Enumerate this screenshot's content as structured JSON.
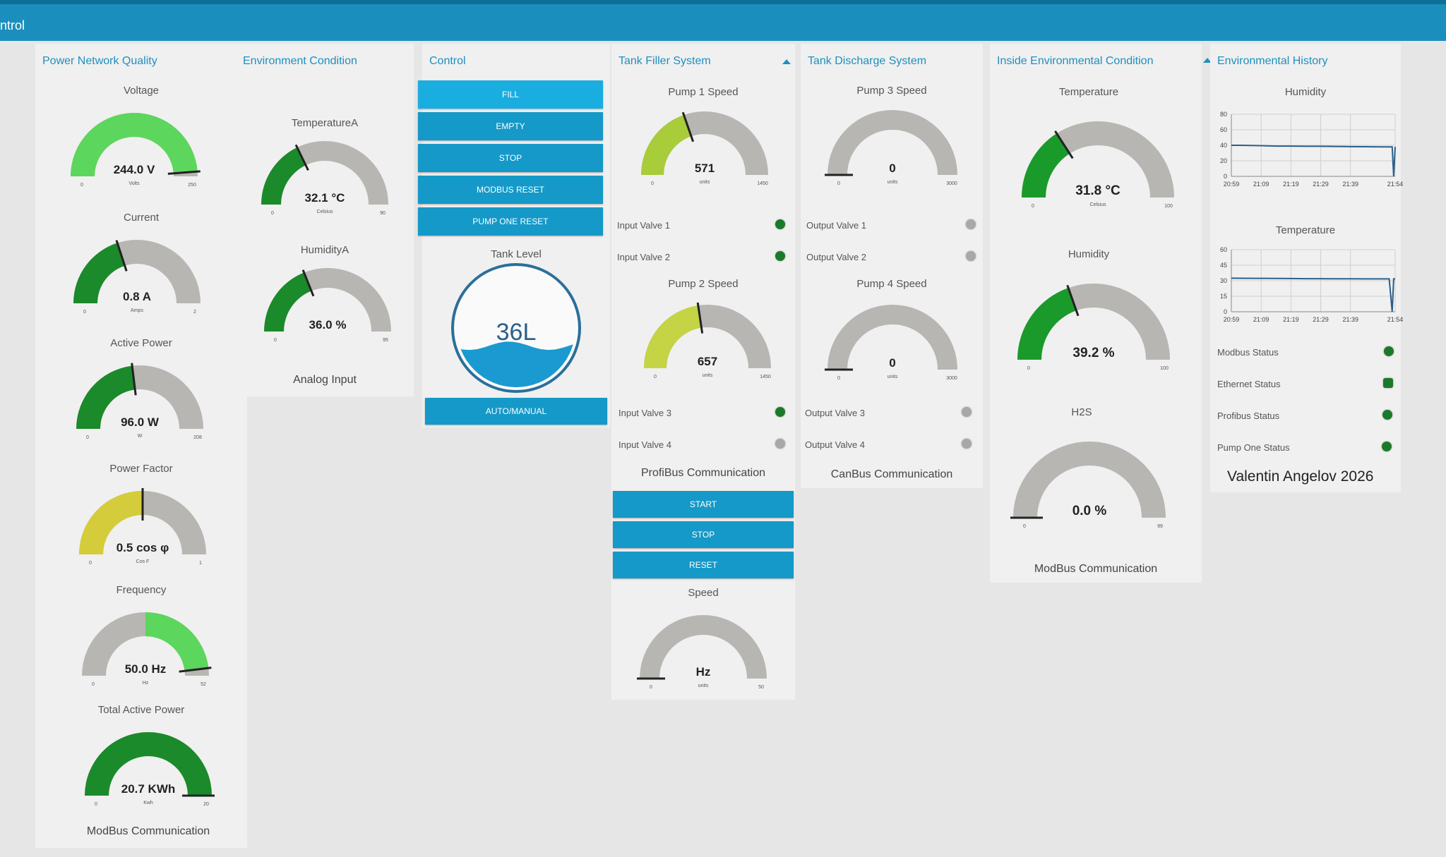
{
  "header": {
    "title": "ntrol",
    "color": "#1a8fbd"
  },
  "panels": {
    "power": {
      "title": "Power Network Quality",
      "footer": "ModBus Communication",
      "gauges": [
        {
          "label": "Voltage",
          "value_text": "244.0 V",
          "unit": "Volts",
          "min": "0",
          "max": "250",
          "value": 244,
          "range": [
            0,
            250
          ],
          "color": "#5cd65c"
        },
        {
          "label": "Current",
          "value_text": "0.8 A",
          "unit": "Amps",
          "min": "0",
          "max": "2",
          "value": 0.8,
          "range": [
            0,
            2
          ],
          "color": "#1a8a2a"
        },
        {
          "label": "Active Power",
          "value_text": "96.0 W",
          "unit": "W",
          "min": "0",
          "max": "208",
          "value": 96,
          "range": [
            0,
            208
          ],
          "color": "#1a8a2a"
        },
        {
          "label": "Power Factor",
          "value_text": "0.5 cos φ",
          "unit": "Cos F",
          "min": "0",
          "max": "1",
          "value": 0.5,
          "range": [
            0,
            1
          ],
          "color": "#d4cc3a"
        },
        {
          "label": "Frequency",
          "value_text": "50.0 Hz",
          "unit": "Hz",
          "min": "0",
          "max": "52",
          "value": 50,
          "range": [
            0,
            52
          ],
          "color": "#5cd65c",
          "fill_mode": "upper"
        },
        {
          "label": "Total Active Power",
          "value_text": "20.7 KWh",
          "unit": "Kwh",
          "min": "0",
          "max": "20",
          "value": 20.7,
          "range": [
            0,
            20
          ],
          "color": "#1a8a2a"
        }
      ]
    },
    "env": {
      "title": "Environment Condition",
      "footer": "Analog Input",
      "gauges": [
        {
          "label": "TemperatureA",
          "value_text": "32.1 °C",
          "unit": "Celsius",
          "min": "0",
          "max": "90",
          "value": 32.1,
          "range": [
            0,
            90
          ],
          "color": "#1a8a2a"
        },
        {
          "label": "HumidityA",
          "value_text": "36.0 %",
          "unit": "",
          "min": "0",
          "max": "95",
          "value": 36,
          "range": [
            0,
            95
          ],
          "color": "#1a8a2a"
        }
      ]
    },
    "control": {
      "title": "Control",
      "buttons": [
        "FILL",
        "EMPTY",
        "STOP",
        "MODBUS RESET",
        "PUMP ONE RESET"
      ],
      "tank_label": "Tank Level",
      "tank_value": "36L",
      "tank_level": 0.36,
      "mode_button": "AUTO/MANUAL"
    },
    "filler": {
      "title": "Tank Filler System",
      "pump1": {
        "label": "Pump 1 Speed",
        "value_text": "571",
        "unit": "units",
        "min": "0",
        "max": "1450",
        "value": 571,
        "range": [
          0,
          1450
        ],
        "color": "#a8cc3a"
      },
      "valves_a": [
        {
          "label": "Input Valve 1",
          "on": true
        },
        {
          "label": "Input Valve 2",
          "on": true
        }
      ],
      "pump2": {
        "label": "Pump 2 Speed",
        "value_text": "657",
        "unit": "units",
        "min": "0",
        "max": "1450",
        "value": 657,
        "range": [
          0,
          1450
        ],
        "color": "#c4d444"
      },
      "valves_b": [
        {
          "label": "Input Valve 3",
          "on": true
        },
        {
          "label": "Input Valve 4",
          "on": false
        }
      ],
      "comm_label": "ProfiBus Communication",
      "buttons": [
        "START",
        "STOP",
        "RESET"
      ],
      "speed": {
        "label": "Speed",
        "value_text": "Hz",
        "unit": "units",
        "min": "0",
        "max": "50",
        "value": 0,
        "range": [
          0,
          50
        ],
        "color": "#1a8a2a"
      }
    },
    "discharge": {
      "title": "Tank Discharge System",
      "pump3": {
        "label": "Pump 3 Speed",
        "value_text": "0",
        "unit": "units",
        "min": "0",
        "max": "3000",
        "value": 0,
        "range": [
          0,
          3000
        ],
        "color": "#1a8a2a"
      },
      "valves_a": [
        {
          "label": "Output Valve 1",
          "on": false
        },
        {
          "label": "Output Valve 2",
          "on": false
        }
      ],
      "pump4": {
        "label": "Pump 4 Speed",
        "value_text": "0",
        "unit": "units",
        "min": "0",
        "max": "3000",
        "value": 0,
        "range": [
          0,
          3000
        ],
        "color": "#1a8a2a"
      },
      "valves_b": [
        {
          "label": "Output Valve 3",
          "on": false
        },
        {
          "label": "Output Valve 4",
          "on": false
        }
      ],
      "comm_label": "CanBus Communication"
    },
    "inside": {
      "title": "Inside Environmental Condition",
      "footer": "ModBus Communication",
      "gauges": [
        {
          "label": "Temperature",
          "value_text": "31.8 °C",
          "unit": "Celsius",
          "min": "0",
          "max": "100",
          "value": 31.8,
          "range": [
            0,
            100
          ],
          "color": "#1a9a2a"
        },
        {
          "label": "Humidity",
          "value_text": "39.2 %",
          "unit": "",
          "min": "0",
          "max": "100",
          "value": 39.2,
          "range": [
            0,
            100
          ],
          "color": "#1a9a2a"
        },
        {
          "label": "H2S",
          "value_text": "0.0 %",
          "unit": "",
          "min": "0",
          "max": "99",
          "value": 0,
          "range": [
            0,
            99
          ],
          "color": "#1a9a2a"
        }
      ]
    },
    "history": {
      "title": "Environmental History",
      "status": [
        {
          "label": "Modbus Status",
          "on": true,
          "shape": "round"
        },
        {
          "label": "Ethernet Status",
          "on": true,
          "shape": "square"
        },
        {
          "label": "Profibus Status",
          "on": true,
          "shape": "round"
        },
        {
          "label": "Pump One Status",
          "on": true,
          "shape": "round"
        }
      ],
      "author": "Valentin Angelov 2026"
    }
  },
  "chart_data": [
    {
      "type": "line",
      "title": "Humidity",
      "x_ticks": [
        "20:59",
        "21:09",
        "21:19",
        "21:29",
        "21:39",
        "21:54"
      ],
      "y_ticks": [
        "0",
        "20",
        "40",
        "60",
        "80"
      ],
      "ylim": [
        0,
        80
      ],
      "x": [
        "20:59",
        "21:02",
        "21:09",
        "21:14",
        "21:19",
        "21:24",
        "21:29",
        "21:34",
        "21:39",
        "21:44",
        "21:50",
        "21:53",
        "21:53.5",
        "21:54"
      ],
      "y": [
        40,
        40,
        39.5,
        39,
        39,
        38.8,
        38.7,
        38.5,
        38.3,
        38.2,
        38,
        38,
        0,
        38
      ],
      "line_color": "#2a5f8a"
    },
    {
      "type": "line",
      "title": "Temperature",
      "x_ticks": [
        "20:59",
        "21:09",
        "21:19",
        "21:29",
        "21:39",
        "21:54"
      ],
      "y_ticks": [
        "0",
        "15",
        "30",
        "45",
        "60"
      ],
      "ylim": [
        0,
        60
      ],
      "x": [
        "20:59",
        "21:02",
        "21:09",
        "21:14",
        "21:19",
        "21:24",
        "21:29",
        "21:34",
        "21:39",
        "21:44",
        "21:50",
        "21:52",
        "21:53",
        "21:53.5",
        "21:54"
      ],
      "y": [
        32.5,
        32.4,
        32.3,
        32.2,
        32.1,
        32,
        32,
        31.9,
        31.9,
        31.8,
        31.8,
        31.8,
        0,
        31.8,
        31.8
      ],
      "line_color": "#2a5f8a"
    }
  ]
}
